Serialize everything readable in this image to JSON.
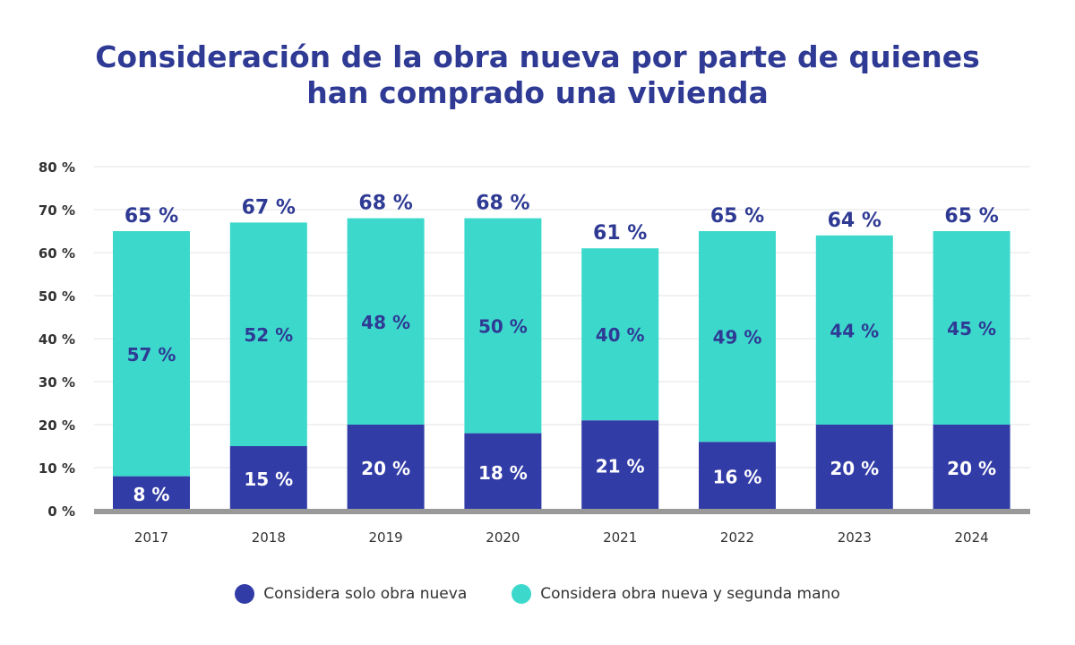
{
  "chart_data": {
    "type": "bar",
    "stacked": true,
    "title_lines": [
      "Consideración de la obra nueva por parte de quienes",
      "han comprado una vivienda"
    ],
    "categories": [
      "2017",
      "2018",
      "2019",
      "2020",
      "2021",
      "2022",
      "2023",
      "2024"
    ],
    "series": [
      {
        "name": "Considera solo obra nueva",
        "color": "#323ca6",
        "values": [
          8,
          15,
          20,
          18,
          21,
          16,
          20,
          20
        ]
      },
      {
        "name": "Considera obra nueva y segunda mano",
        "color": "#3dd8cc",
        "values": [
          57,
          52,
          48,
          50,
          40,
          49,
          44,
          45
        ]
      }
    ],
    "totals": [
      65,
      67,
      68,
      68,
      61,
      65,
      64,
      65
    ],
    "yticks": [
      "0 %",
      "10 %",
      "20 %",
      "30 %",
      "40 %",
      "50 %",
      "60 %",
      "70 %",
      "80 %"
    ],
    "ylim": [
      0,
      80
    ],
    "grid": true,
    "legend_position": "bottom",
    "label_suffix": " %"
  }
}
